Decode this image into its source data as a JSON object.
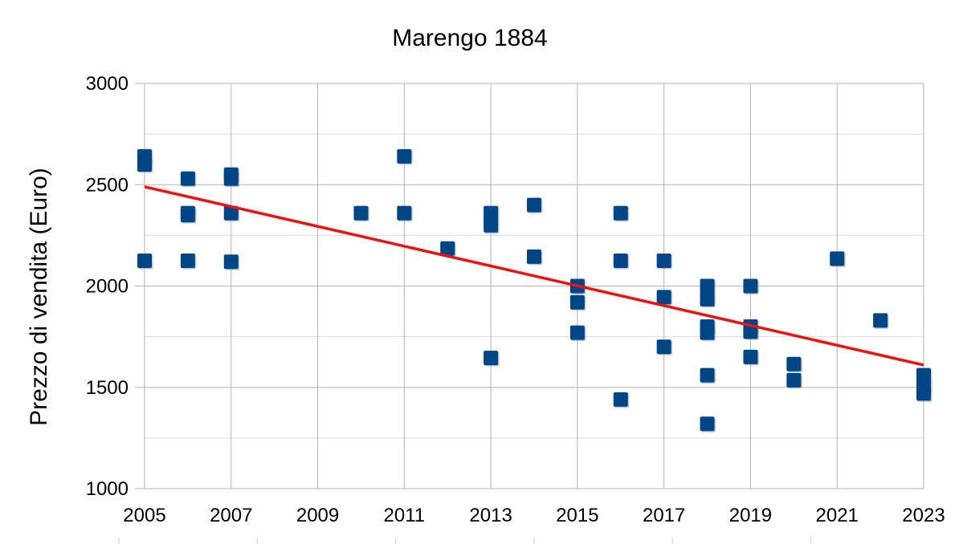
{
  "chart_data": {
    "type": "scatter",
    "title": "Marengo 1884",
    "xlabel": "",
    "ylabel": "Prezzo di vendita (Euro)",
    "xlim": [
      2005,
      2023
    ],
    "ylim": [
      1000,
      3000
    ],
    "x_ticks": [
      "2005",
      "2007",
      "2009",
      "2011",
      "2013",
      "2015",
      "2017",
      "2019",
      "2021",
      "2023"
    ],
    "y_ticks": [
      "1000",
      "1500",
      "2000",
      "2500",
      "3000"
    ],
    "grid": true,
    "marker_color": "#004586",
    "trendline_color": "#ee1111",
    "points": [
      [
        2005,
        2640
      ],
      [
        2005,
        2600
      ],
      [
        2005,
        2125
      ],
      [
        2006,
        2530
      ],
      [
        2006,
        2360
      ],
      [
        2006,
        2350
      ],
      [
        2006,
        2125
      ],
      [
        2007,
        2550
      ],
      [
        2007,
        2530
      ],
      [
        2007,
        2360
      ],
      [
        2007,
        2120
      ],
      [
        2010,
        2360
      ],
      [
        2011,
        2640
      ],
      [
        2011,
        2360
      ],
      [
        2012,
        2185
      ],
      [
        2013,
        2360
      ],
      [
        2013,
        2300
      ],
      [
        2013,
        1645
      ],
      [
        2014,
        2400
      ],
      [
        2014,
        2145
      ],
      [
        2015,
        2000
      ],
      [
        2015,
        1920
      ],
      [
        2015,
        1770
      ],
      [
        2016,
        2360
      ],
      [
        2016,
        2125
      ],
      [
        2016,
        1440
      ],
      [
        2017,
        2125
      ],
      [
        2017,
        1945
      ],
      [
        2017,
        1700
      ],
      [
        2018,
        2000
      ],
      [
        2018,
        1935
      ],
      [
        2018,
        1800
      ],
      [
        2018,
        1770
      ],
      [
        2018,
        1560
      ],
      [
        2018,
        1320
      ],
      [
        2019,
        2000
      ],
      [
        2019,
        1800
      ],
      [
        2019,
        1775
      ],
      [
        2019,
        1650
      ],
      [
        2020,
        1615
      ],
      [
        2020,
        1535
      ],
      [
        2021,
        2135
      ],
      [
        2022,
        1830
      ],
      [
        2023,
        1560
      ],
      [
        2023,
        1510
      ],
      [
        2023,
        1470
      ]
    ],
    "trendline": [
      [
        2005,
        2490
      ],
      [
        2023,
        1610
      ]
    ]
  }
}
